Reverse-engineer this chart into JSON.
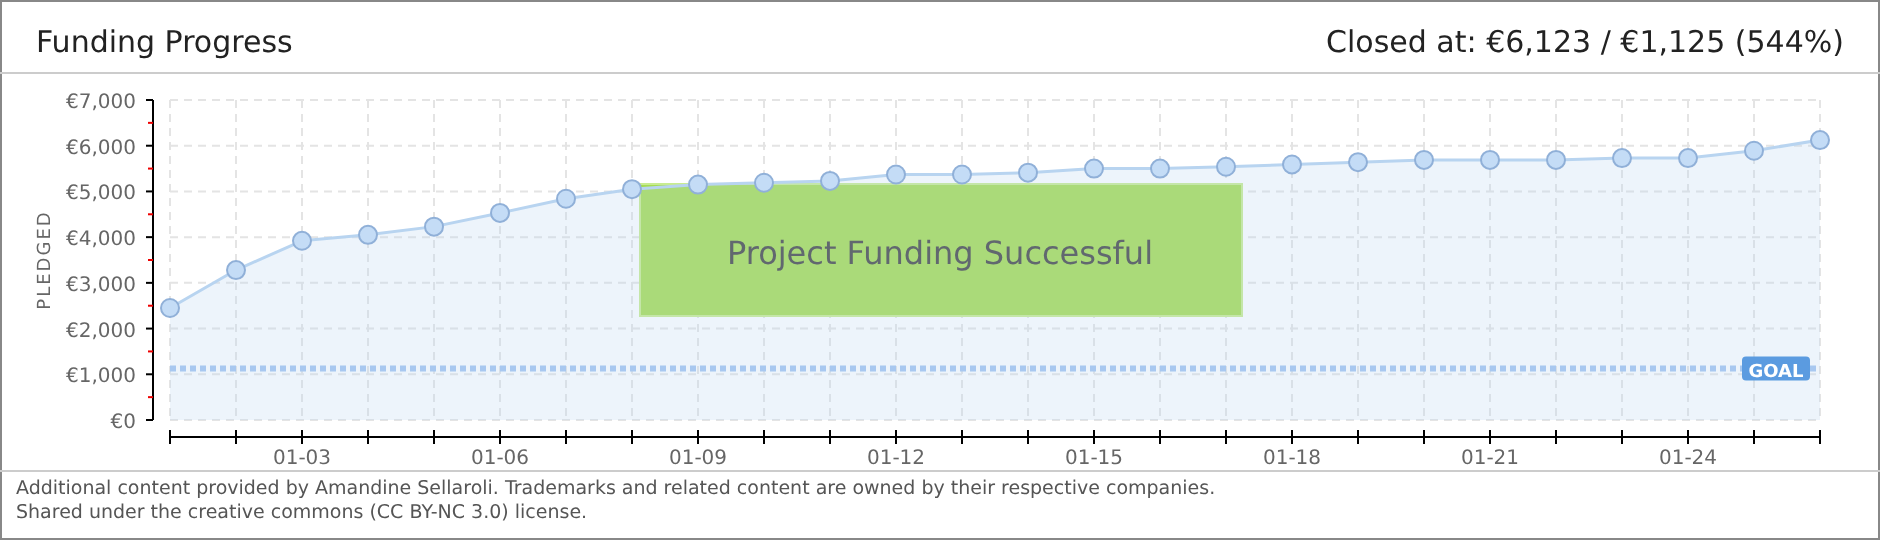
{
  "chart_data": {
    "type": "area",
    "title": "Funding Progress",
    "subtitle": "Closed at:  €6,123 / €1,125 (544%)",
    "ylabel": "PLEDGED",
    "x": [
      "--01-01",
      "--01-02",
      "--01-03",
      "--01-04",
      "--01-05",
      "--01-06",
      "--01-07",
      "--01-08",
      "--01-09",
      "--01-10",
      "--01-11",
      "--01-12",
      "--01-13",
      "--01-14",
      "--01-15",
      "--01-16",
      "--01-17",
      "--01-18",
      "--01-19",
      "--01-20",
      "--01-21",
      "--01-22",
      "--01-23",
      "--01-24",
      "--01-25",
      "--01-26"
    ],
    "series": [
      {
        "color": "#b8d4f0",
        "values": [
          2450,
          3280,
          3920,
          4050,
          4230,
          4530,
          4840,
          5050,
          5150,
          5190,
          5230,
          5370,
          5370,
          5410,
          5500,
          5500,
          5540,
          5590,
          5640,
          5690,
          5690,
          5690,
          5730,
          5730,
          5890,
          6123
        ]
      }
    ],
    "xlim": [
      "--01-01",
      "--01-26"
    ],
    "xticks": [
      {
        "value": "--01-01",
        "label": null
      },
      {
        "value": "--01-02",
        "label": null
      },
      {
        "value": "--01-03",
        "label": "01-03"
      },
      {
        "value": "--01-04",
        "label": null
      },
      {
        "value": "--01-05",
        "label": null
      },
      {
        "value": "--01-06",
        "label": "01-06"
      },
      {
        "value": "--01-07",
        "label": null
      },
      {
        "value": "--01-08",
        "label": null
      },
      {
        "value": "--01-09",
        "label": "01-09"
      },
      {
        "value": "--01-10",
        "label": null
      },
      {
        "value": "--01-11",
        "label": null
      },
      {
        "value": "--01-12",
        "label": "01-12"
      },
      {
        "value": "--01-13",
        "label": null
      },
      {
        "value": "--01-14",
        "label": null
      },
      {
        "value": "--01-15",
        "label": "01-15"
      },
      {
        "value": "--01-16",
        "label": null
      },
      {
        "value": "--01-17",
        "label": null
      },
      {
        "value": "--01-18",
        "label": "01-18"
      },
      {
        "value": "--01-19",
        "label": null
      },
      {
        "value": "--01-20",
        "label": null
      },
      {
        "value": "--01-21",
        "label": "01-21"
      },
      {
        "value": "--01-22",
        "label": null
      },
      {
        "value": "--01-23",
        "label": null
      },
      {
        "value": "--01-24",
        "label": "01-24"
      },
      {
        "value": "--01-25",
        "label": null
      },
      {
        "value": "--01-26",
        "label": null
      }
    ],
    "ylim": [
      0,
      7000
    ],
    "yticks": [
      {
        "value": 0,
        "label": "€0"
      },
      {
        "value": 500,
        "label": null
      },
      {
        "value": 1000,
        "label": "€1,000"
      },
      {
        "value": 1500,
        "label": null
      },
      {
        "value": 2000,
        "label": "€2,000"
      },
      {
        "value": 2500,
        "label": null
      },
      {
        "value": 3000,
        "label": "€3,000"
      },
      {
        "value": 3500,
        "label": null
      },
      {
        "value": 4000,
        "label": "€4,000"
      },
      {
        "value": 4500,
        "label": null
      },
      {
        "value": 5000,
        "label": "€5,000"
      },
      {
        "value": 5500,
        "label": null
      },
      {
        "value": 6000,
        "label": "€6,000"
      },
      {
        "value": 6500,
        "label": null
      },
      {
        "value": 7000,
        "label": "€7,000"
      }
    ],
    "grid": true,
    "marker": "circle",
    "ref_lines": [
      {
        "axis": "y",
        "value": 1125,
        "label": "GOAL",
        "color": "#a8c8f0",
        "line_style": "dotted"
      }
    ],
    "annotations": [
      "Project Funding Successful",
      "Additional content provided by Amandine Sellaroli. Trademarks and related content are owned by their respective companies.",
      "Shared under the creative commons (CC BY-NC 3.0) license."
    ]
  }
}
